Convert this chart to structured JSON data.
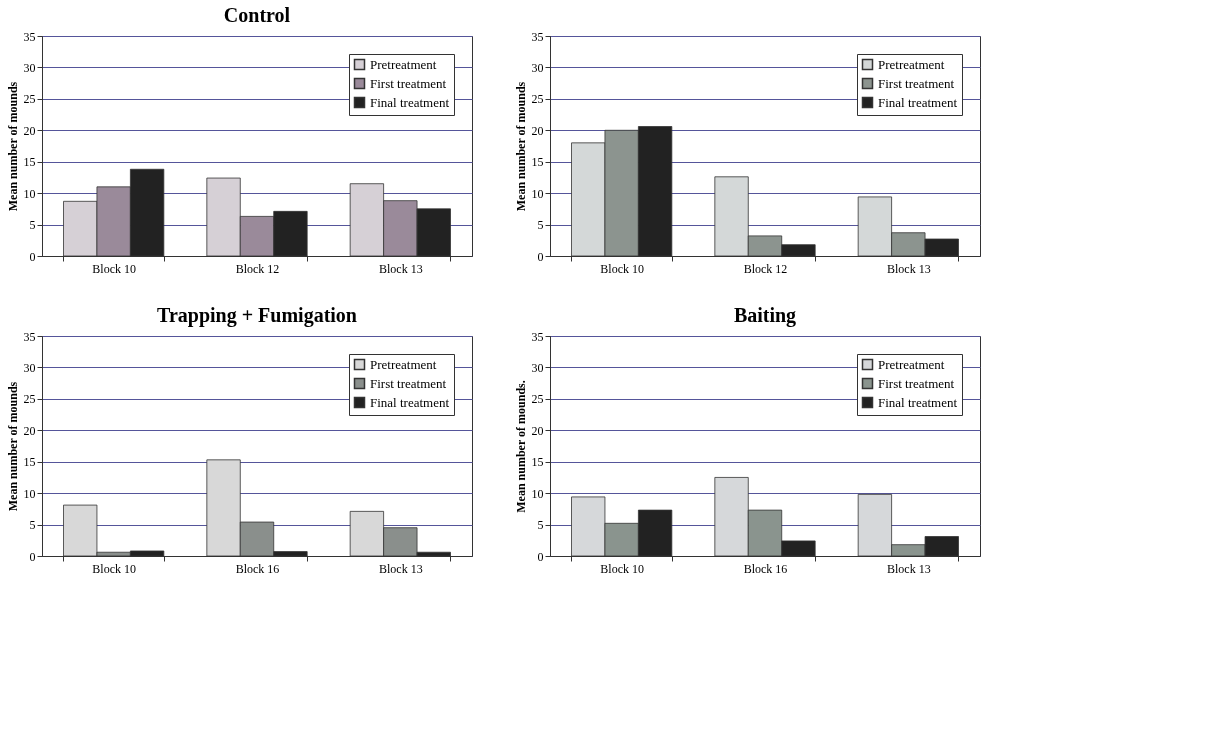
{
  "chart_data": [
    {
      "type": "bar",
      "title": "Control",
      "ylabel": "Mean number of mounds",
      "categories": [
        "Block 10",
        "Block 12",
        "Block 13"
      ],
      "ylim": [
        0,
        35
      ],
      "yticks": [
        0,
        5,
        10,
        15,
        20,
        25,
        30,
        35
      ],
      "grid": "y",
      "legend": "top right",
      "series": [
        {
          "name": "Pretreatment",
          "color": "#d6d0d6",
          "values": [
            8.7,
            12.4,
            11.5
          ]
        },
        {
          "name": "First treatment",
          "color": "#9a8a9a",
          "values": [
            11.0,
            6.3,
            8.8
          ]
        },
        {
          "name": "Final treatment",
          "color": "#222222",
          "values": [
            13.8,
            7.1,
            7.5
          ]
        }
      ]
    },
    {
      "type": "bar",
      "ylabel": "Mean number of mounds",
      "categories": [
        "Block 10",
        "Block 12",
        "Block 13"
      ],
      "ylim": [
        0,
        35
      ],
      "yticks": [
        0,
        5,
        10,
        15,
        20,
        25,
        30,
        35
      ],
      "grid": "y",
      "legend": "top right",
      "series": [
        {
          "name": "Pretreatment",
          "color": "#d4d8d8",
          "values": [
            18.0,
            12.6,
            9.4
          ]
        },
        {
          "name": "First treatment",
          "color": "#8c948f",
          "values": [
            20.0,
            3.2,
            3.7
          ]
        },
        {
          "name": "Final treatment",
          "color": "#222222",
          "values": [
            20.6,
            1.8,
            2.7
          ]
        }
      ]
    },
    {
      "type": "bar",
      "title": "Trapping + Fumigation",
      "ylabel": "Mean number of mounds",
      "categories": [
        "Block 10",
        "Block 16",
        "Block 13"
      ],
      "ylim": [
        0,
        35
      ],
      "yticks": [
        0,
        5,
        10,
        15,
        20,
        25,
        30,
        35
      ],
      "grid": "y",
      "legend": "top right",
      "series": [
        {
          "name": "Pretreatment",
          "color": "#d8d8d8",
          "values": [
            8.1,
            15.3,
            7.1
          ]
        },
        {
          "name": "First treatment",
          "color": "#8a8f8c",
          "values": [
            0.6,
            5.4,
            4.5
          ]
        },
        {
          "name": "Final treatment",
          "color": "#222222",
          "values": [
            0.8,
            0.7,
            0.6
          ]
        }
      ]
    },
    {
      "type": "bar",
      "title": "Baiting",
      "ylabel": "Mean number of mounds.",
      "categories": [
        "Block 10",
        "Block 16",
        "Block 13"
      ],
      "ylim": [
        0,
        35
      ],
      "yticks": [
        0,
        5,
        10,
        15,
        20,
        25,
        30,
        35
      ],
      "grid": "y",
      "legend": "top right",
      "series": [
        {
          "name": "Pretreatment",
          "color": "#d6d8da",
          "values": [
            9.4,
            12.5,
            9.8
          ]
        },
        {
          "name": "First treatment",
          "color": "#8a948e",
          "values": [
            5.2,
            7.3,
            1.8
          ]
        },
        {
          "name": "Final treatment",
          "color": "#222222",
          "values": [
            7.3,
            2.4,
            3.1
          ]
        }
      ]
    }
  ]
}
